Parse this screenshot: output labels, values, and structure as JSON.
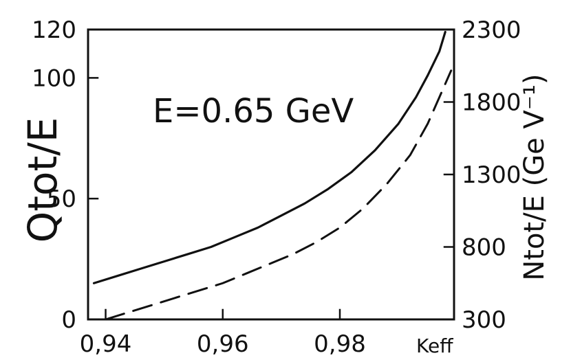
{
  "chart_data": {
    "type": "line",
    "annotation": "E=0.65 GeV",
    "xlabel": "Keff",
    "ylabel_left": "Qtot/E",
    "ylabel_right": "Ntot/E  (Ge V⁻¹)",
    "xlim": [
      0.937,
      0.9995
    ],
    "ylim": [
      0,
      120
    ],
    "ylim_right": [
      300,
      2300
    ],
    "x_ticks": [
      0.94,
      0.96,
      0.98
    ],
    "x_tick_labels": [
      "0,94",
      "0,96",
      "0,98"
    ],
    "y_left_ticks": [
      0,
      50,
      100,
      120
    ],
    "y_left_tick_labels": [
      "0",
      "50",
      "100",
      "120"
    ],
    "y_right_ticks": [
      300,
      800,
      1300,
      1800,
      2300
    ],
    "y_right_tick_labels": [
      "300",
      "800",
      "1300",
      "1800",
      "2300"
    ],
    "series": [
      {
        "style": "solid",
        "axis": "left",
        "x": [
          0.938,
          0.942,
          0.946,
          0.95,
          0.954,
          0.958,
          0.962,
          0.966,
          0.97,
          0.974,
          0.978,
          0.982,
          0.986,
          0.99,
          0.993,
          0.995,
          0.997,
          0.998
        ],
        "y": [
          15,
          18,
          21,
          24,
          27,
          30,
          34,
          38,
          43,
          48,
          54,
          61,
          70,
          81,
          92,
          101,
          111,
          119
        ]
      },
      {
        "style": "dashed",
        "axis": "left",
        "x": [
          0.94,
          0.944,
          0.948,
          0.952,
          0.956,
          0.96,
          0.964,
          0.968,
          0.972,
          0.976,
          0.98,
          0.984,
          0.988,
          0.992,
          0.995,
          0.997,
          0.999
        ],
        "y": [
          0,
          3,
          6,
          9,
          12,
          15,
          19,
          23,
          27,
          32,
          38,
          46,
          56,
          68,
          81,
          92,
          103
        ]
      }
    ]
  }
}
